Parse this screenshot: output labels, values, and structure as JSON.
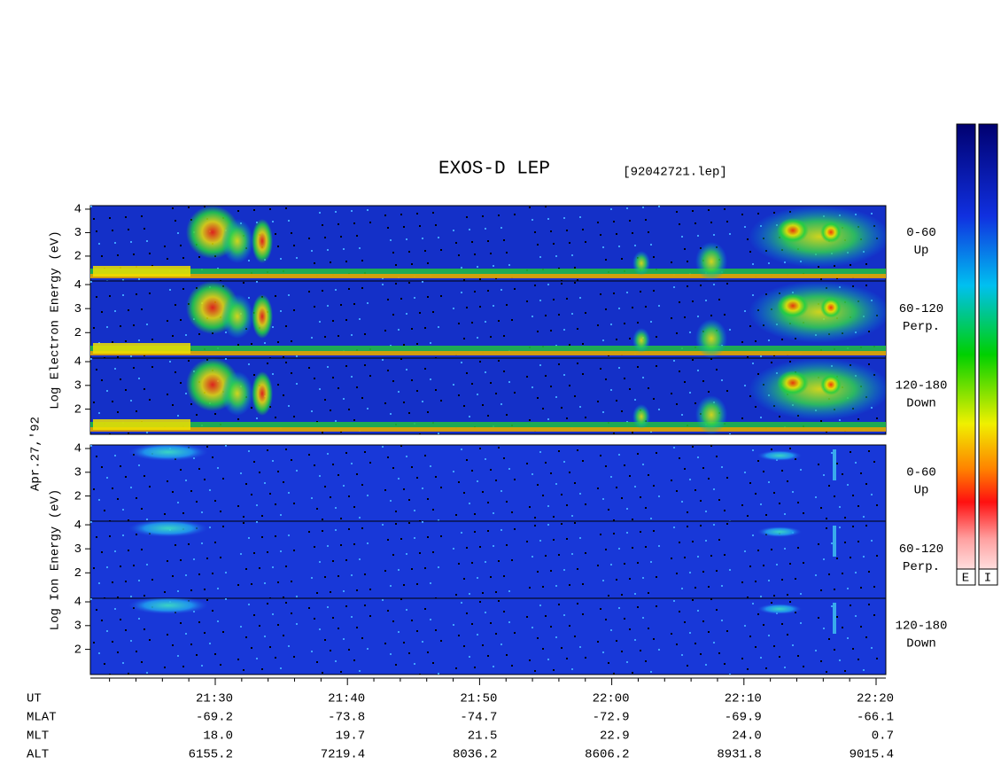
{
  "chart_data": {
    "type": "spectrogram",
    "title": "EXOS-D LEP",
    "file": "[92042721.lep]",
    "date": "Apr.27,'92",
    "ylim": [
      0.94,
      4.15
    ],
    "yticks": [
      2,
      3,
      4
    ],
    "groups": [
      {
        "name": "Log Electron Energy (eV)",
        "panels": [
          {
            "range": "0-60",
            "direction": "Up"
          },
          {
            "range": "60-120",
            "direction": "Perp."
          },
          {
            "range": "120-180",
            "direction": "Down"
          }
        ]
      },
      {
        "name": "Log Ion Energy (eV)",
        "panels": [
          {
            "range": "0-60",
            "direction": "Up"
          },
          {
            "range": "60-120",
            "direction": "Perp."
          },
          {
            "range": "120-180",
            "direction": "Down"
          }
        ]
      }
    ],
    "x_rows": [
      {
        "label": "UT",
        "values": [
          "21:30",
          "21:40",
          "21:50",
          "22:00",
          "22:10",
          "22:20"
        ]
      },
      {
        "label": "MLAT",
        "values": [
          "-69.2",
          "-73.8",
          "-74.7",
          "-72.9",
          "-69.9",
          "-66.1"
        ]
      },
      {
        "label": "MLT",
        "values": [
          "18.0",
          "19.7",
          "21.5",
          "22.9",
          "24.0",
          "0.7"
        ]
      },
      {
        "label": "ALT",
        "values": [
          "6155.2",
          "7219.4",
          "8036.2",
          "8606.2",
          "8931.8",
          "9015.4"
        ]
      }
    ],
    "colorbar_labels": [
      "E",
      "I"
    ]
  }
}
